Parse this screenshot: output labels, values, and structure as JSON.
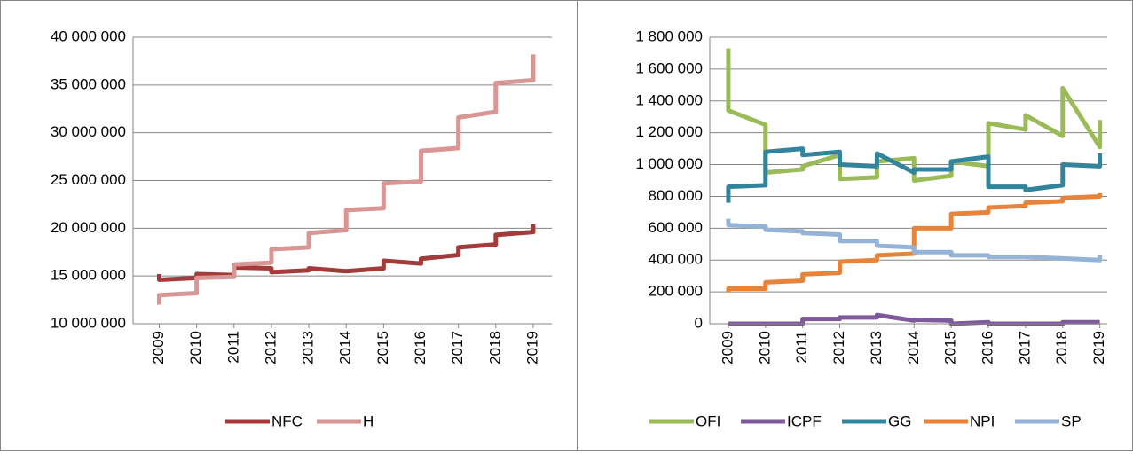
{
  "chart_data": [
    {
      "type": "line",
      "x": [
        2009,
        2009,
        2010,
        2010,
        2011,
        2011,
        2012,
        2012,
        2013,
        2013,
        2014,
        2014,
        2015,
        2015,
        2016,
        2016,
        2017,
        2017,
        2018,
        2018,
        2019,
        2019
      ],
      "series": [
        {
          "name": "NFC",
          "color": "#a33b3b",
          "values": [
            15200000,
            14600000,
            14800000,
            15200000,
            15100000,
            15900000,
            15800000,
            15400000,
            15600000,
            15800000,
            15500000,
            15500000,
            15800000,
            16600000,
            16300000,
            16800000,
            17200000,
            18000000,
            18300000,
            19300000,
            19600000,
            20400000
          ]
        },
        {
          "name": "H",
          "color": "#d99694",
          "values": [
            12000000,
            13000000,
            13200000,
            14800000,
            14900000,
            16200000,
            16400000,
            17800000,
            18000000,
            19500000,
            19800000,
            21900000,
            22100000,
            24700000,
            24900000,
            28100000,
            28400000,
            31600000,
            32200000,
            35200000,
            35500000,
            38200000
          ]
        }
      ],
      "xlim": [
        2008.3,
        2019.5
      ],
      "xticks": [
        2009,
        2010,
        2011,
        2012,
        2013,
        2014,
        2015,
        2016,
        2017,
        2018,
        2019
      ],
      "ylim": [
        10000000,
        40000000
      ],
      "yticks": [
        {
          "value": 10000000,
          "label": "10 000 000"
        },
        {
          "value": 15000000,
          "label": "15 000 000"
        },
        {
          "value": 20000000,
          "label": "20 000 000"
        },
        {
          "value": 25000000,
          "label": "25 000 000"
        },
        {
          "value": 30000000,
          "label": "30 000 000"
        },
        {
          "value": 35000000,
          "label": "35 000 000"
        },
        {
          "value": 40000000,
          "label": "40 000 000"
        }
      ],
      "grid": true,
      "legend": "bottom"
    },
    {
      "type": "line",
      "x": [
        2009,
        2009,
        2010,
        2010,
        2011,
        2011,
        2012,
        2012,
        2013,
        2013,
        2014,
        2014,
        2015,
        2015,
        2016,
        2016,
        2017,
        2017,
        2018,
        2018,
        2019,
        2019
      ],
      "series": [
        {
          "name": "OFI",
          "color": "#9bbb59",
          "values": [
            1730000,
            1340000,
            1250000,
            950000,
            970000,
            990000,
            1060000,
            910000,
            920000,
            1020000,
            1040000,
            900000,
            930000,
            1020000,
            990000,
            1260000,
            1220000,
            1310000,
            1180000,
            1480000,
            1110000,
            1280000
          ]
        },
        {
          "name": "ICPF",
          "color": "#7e5a9b",
          "values": [
            0,
            0,
            0,
            0,
            0,
            30000,
            30000,
            40000,
            40000,
            55000,
            20000,
            25000,
            20000,
            0,
            10000,
            0,
            0,
            0,
            0,
            10000,
            10000,
            10000
          ]
        },
        {
          "name": "GG",
          "color": "#31849b",
          "values": [
            760000,
            860000,
            870000,
            1080000,
            1100000,
            1060000,
            1080000,
            1000000,
            990000,
            1070000,
            950000,
            970000,
            970000,
            1020000,
            1050000,
            860000,
            860000,
            840000,
            870000,
            1000000,
            990000,
            1070000
          ]
        },
        {
          "name": "NPI",
          "color": "#e6843c",
          "values": [
            200000,
            220000,
            220000,
            260000,
            270000,
            310000,
            320000,
            390000,
            400000,
            430000,
            440000,
            600000,
            600000,
            690000,
            700000,
            730000,
            740000,
            760000,
            770000,
            790000,
            800000,
            820000
          ]
        },
        {
          "name": "SP",
          "color": "#95b3d7",
          "values": [
            660000,
            620000,
            610000,
            590000,
            580000,
            570000,
            560000,
            520000,
            520000,
            490000,
            480000,
            450000,
            450000,
            430000,
            430000,
            420000,
            420000,
            420000,
            410000,
            410000,
            400000,
            430000
          ]
        }
      ],
      "xlim": [
        2008.5,
        2019.2
      ],
      "xticks": [
        2009,
        2010,
        2011,
        2012,
        2013,
        2014,
        2015,
        2016,
        2017,
        2018,
        2019
      ],
      "ylim": [
        0,
        1800000
      ],
      "yticks": [
        0,
        {
          "value": 200000,
          "label": "200 000"
        },
        {
          "value": 400000,
          "label": "400 000"
        },
        {
          "value": 600000,
          "label": "600 000"
        },
        {
          "value": 800000,
          "label": "800 000"
        },
        {
          "value": 1000000,
          "label": "1 000 000"
        },
        {
          "value": 1200000,
          "label": "1 200 000"
        },
        {
          "value": 1400000,
          "label": "1 400 000"
        },
        {
          "value": 1600000,
          "label": "1 600 000"
        },
        {
          "value": 1800000,
          "label": "1 800 000"
        }
      ],
      "grid": true,
      "legend": "bottom"
    }
  ]
}
